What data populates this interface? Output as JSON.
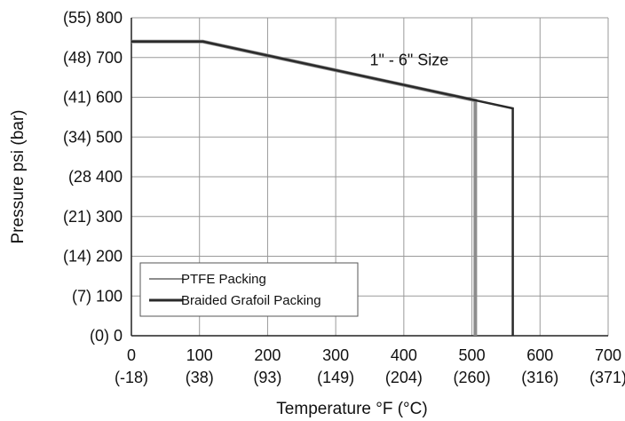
{
  "chart_data": {
    "type": "line",
    "title": "",
    "xlabel": "Temperature °F (°C)",
    "ylabel": "Pressure psi (bar)",
    "xlim": [
      0,
      700
    ],
    "ylim": [
      0,
      800
    ],
    "grid": true,
    "legend_position": "bottom-left",
    "x_ticks": [
      {
        "value": 0,
        "label": "0",
        "sublabel": "(-18)"
      },
      {
        "value": 100,
        "label": "100",
        "sublabel": "(38)"
      },
      {
        "value": 200,
        "label": "200",
        "sublabel": "(93)"
      },
      {
        "value": 300,
        "label": "300",
        "sublabel": "(149)"
      },
      {
        "value": 400,
        "label": "400",
        "sublabel": "(204)"
      },
      {
        "value": 500,
        "label": "500",
        "sublabel": "(260)"
      },
      {
        "value": 600,
        "label": "600",
        "sublabel": "(316)"
      },
      {
        "value": 700,
        "label": "700",
        "sublabel": "(371)"
      }
    ],
    "y_ticks": [
      {
        "value": 0,
        "label": "(0)    0"
      },
      {
        "value": 100,
        "label": "(7)  100"
      },
      {
        "value": 200,
        "label": "(14) 200"
      },
      {
        "value": 300,
        "label": "(21) 300"
      },
      {
        "value": 400,
        "label": "(28  400"
      },
      {
        "value": 500,
        "label": "(34) 500"
      },
      {
        "value": 600,
        "label": "(41) 600"
      },
      {
        "value": 700,
        "label": "(48) 700"
      },
      {
        "value": 800,
        "label": "(55) 800"
      }
    ],
    "series": [
      {
        "name": "PTFE Packing",
        "color": "#8c8c8c",
        "points": [
          [
            0,
            740
          ],
          [
            105,
            740
          ],
          [
            505,
            592
          ],
          [
            505,
            0
          ]
        ]
      },
      {
        "name": "Braided Grafoil Packing",
        "color": "#2a2a2a",
        "points": [
          [
            0,
            740
          ],
          [
            105,
            740
          ],
          [
            560,
            572
          ],
          [
            560,
            0
          ]
        ]
      }
    ],
    "annotations": [
      {
        "text": "1\" - 6\" Size",
        "x": 350,
        "y": 680
      }
    ]
  }
}
